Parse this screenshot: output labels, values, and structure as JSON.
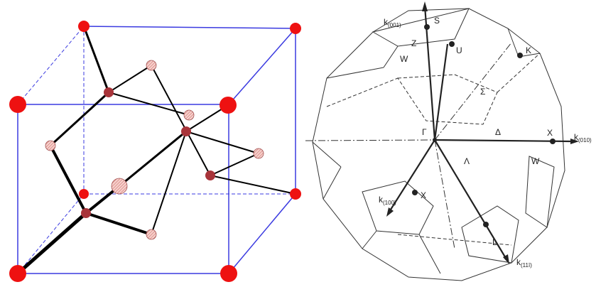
{
  "labels": [
    {
      "text": "k",
      "sub": "(001)"
    },
    {
      "text": "S"
    },
    {
      "text": "U"
    },
    {
      "text": "Z"
    },
    {
      "text": "W"
    },
    {
      "text": "K"
    },
    {
      "text": "Σ"
    },
    {
      "text": "Γ"
    },
    {
      "text": "Δ"
    },
    {
      "text": "X"
    },
    {
      "text": "k",
      "sub": "(010)"
    },
    {
      "text": "Λ"
    },
    {
      "text": "W"
    },
    {
      "text": "k",
      "sub": "(100)"
    },
    {
      "text": "X"
    },
    {
      "text": "L"
    },
    {
      "text": "k",
      "sub": "(11ī)"
    }
  ]
}
